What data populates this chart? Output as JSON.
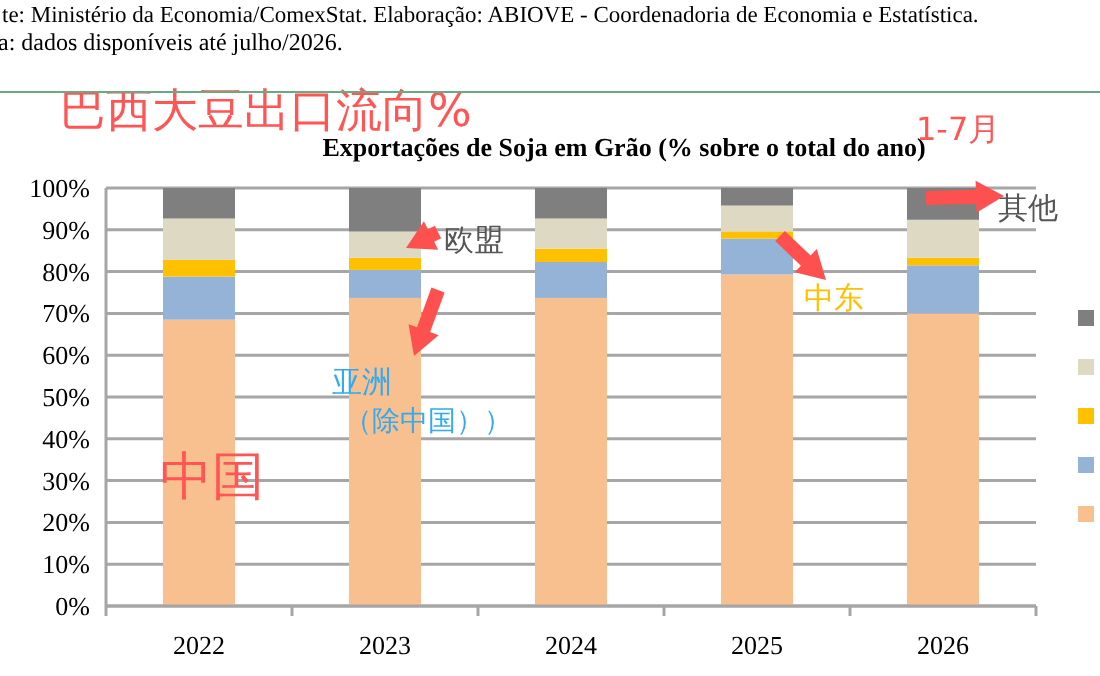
{
  "chart_data": {
    "type": "bar",
    "stacked": true,
    "title": "巴西大豆出口流向%",
    "subtitle": "Exportações de Soja em Grão (% sobre o total do ano)",
    "categories": [
      "2022",
      "2023",
      "2024",
      "2025",
      "2026"
    ],
    "series": [
      {
        "color": "#f8bf8f",
        "values": [
          68.5,
          73.7,
          73.7,
          79.3,
          70.0
        ]
      },
      {
        "color": "#95b3d7",
        "values": [
          10.3,
          6.7,
          8.6,
          8.6,
          11.5
        ]
      },
      {
        "color": "#ffc000",
        "values": [
          4.0,
          2.9,
          3.2,
          1.7,
          1.8
        ]
      },
      {
        "color": "#ddd9c3",
        "values": [
          9.9,
          6.3,
          7.2,
          6.2,
          9.1
        ]
      },
      {
        "color": "#7f7f7f",
        "values": [
          7.3,
          10.4,
          7.3,
          4.2,
          7.6
        ]
      }
    ],
    "ylim": [
      0,
      100
    ],
    "yticks": [
      {
        "value": 0,
        "label": "0%"
      },
      {
        "value": 10,
        "label": "10%"
      },
      {
        "value": 20,
        "label": "20%"
      },
      {
        "value": 30,
        "label": "30%"
      },
      {
        "value": 40,
        "label": "40%"
      },
      {
        "value": 50,
        "label": "50%"
      },
      {
        "value": 60,
        "label": "60%"
      },
      {
        "value": 70,
        "label": "70%"
      },
      {
        "value": 80,
        "label": "80%"
      },
      {
        "value": 90,
        "label": "90%"
      },
      {
        "value": 100,
        "label": "100%"
      }
    ],
    "grid": "y",
    "annotations": [
      "te: Ministério da Economia/ComexStat. Elaboração: ABIOVE - Coordenadoria de Economia e Estatística.",
      "a: dados disponíveis até julho/2026.",
      "1-7月",
      "中国",
      "亚洲",
      "（除中国））",
      "欧盟",
      "中东",
      "其他"
    ]
  }
}
